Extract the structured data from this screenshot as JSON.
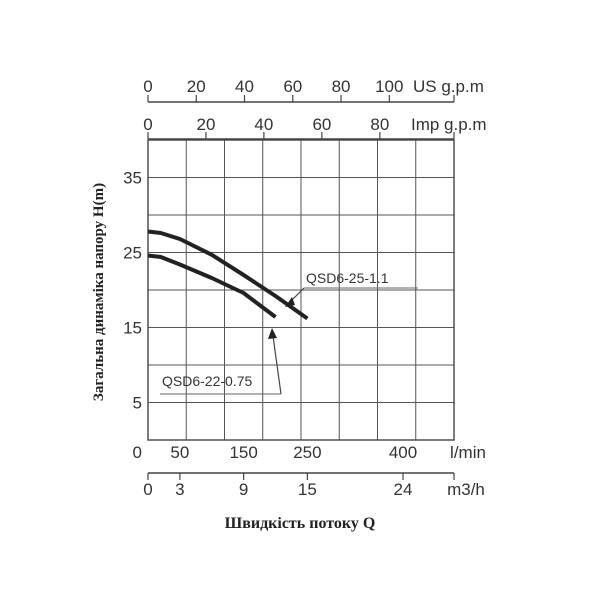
{
  "chart_data": {
    "type": "line",
    "title": "",
    "xlabel": "Швидкість потоку Q",
    "ylabel": "Загальна динаміка напору H(m)",
    "xlim": [
      0,
      480
    ],
    "ylim": [
      0,
      40
    ],
    "grid": true,
    "x_units": "l/min",
    "y_ticks": [
      5,
      15,
      25,
      35
    ],
    "y_bottom_label": "0",
    "x_ticks_lmin": {
      "unit": "l/min",
      "labels": [
        "0",
        "50",
        "150",
        "250",
        "400"
      ],
      "values": [
        0,
        50,
        150,
        250,
        400
      ]
    },
    "x_ticks_m3h": {
      "unit": "m3/h",
      "labels": [
        "0",
        "3",
        "9",
        "15",
        "24"
      ],
      "values": [
        0,
        50,
        150,
        250,
        400
      ]
    },
    "x_ticks_usgpm": {
      "unit": "US g.p.m",
      "labels": [
        "0",
        "20",
        "40",
        "60",
        "80",
        "100"
      ],
      "values": [
        0,
        75.7,
        151.4,
        227.1,
        302.8,
        378.5
      ]
    },
    "x_ticks_impgpm": {
      "unit": "Imp g.p.m",
      "labels": [
        "0",
        "20",
        "40",
        "60",
        "80"
      ],
      "values": [
        0,
        90.9,
        181.8,
        272.8,
        363.7
      ]
    },
    "series": [
      {
        "name": "QSD6-25-1.1",
        "x": [
          0,
          20,
          50,
          100,
          150,
          200,
          250
        ],
        "y": [
          27.8,
          27.6,
          26.8,
          24.7,
          22.0,
          19.2,
          16.2
        ]
      },
      {
        "name": "QSD6-22-0.75",
        "x": [
          0,
          20,
          50,
          100,
          150,
          200
        ],
        "y": [
          24.6,
          24.4,
          23.4,
          21.6,
          19.6,
          16.4
        ]
      }
    ],
    "annotations": [
      "QSD6-25-1.1",
      "QSD6-22-0.75"
    ]
  }
}
